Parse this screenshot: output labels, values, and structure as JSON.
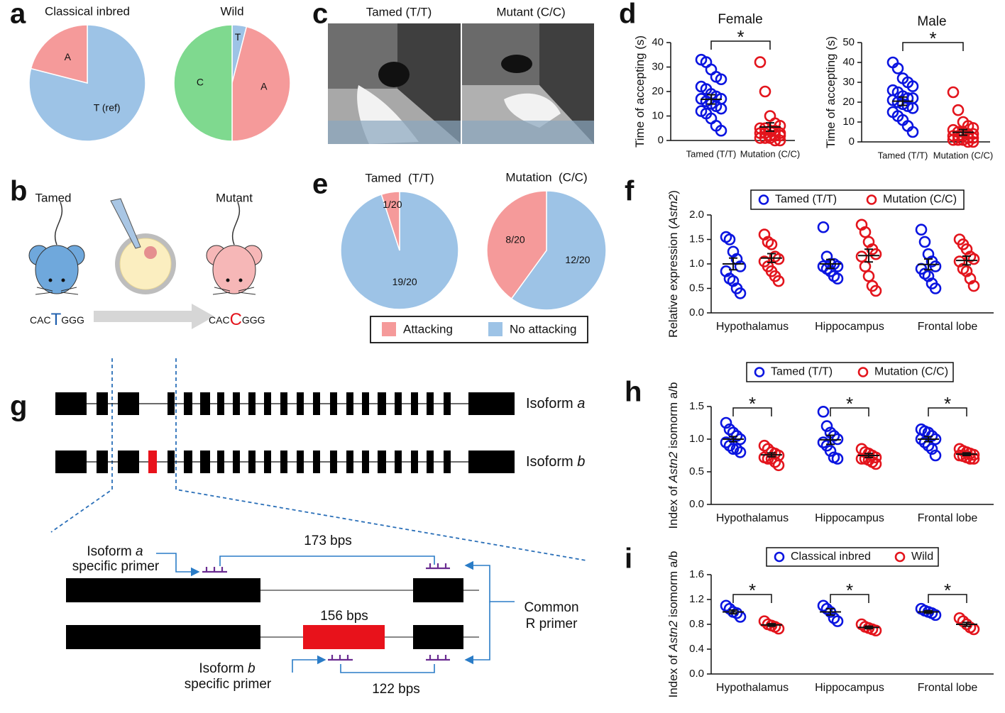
{
  "panel_labels": [
    "a",
    "b",
    "c",
    "d",
    "e",
    "f",
    "g",
    "h",
    "i"
  ],
  "chart_data": [
    {
      "type": "pie",
      "title": "Classical inbred",
      "categories": [
        "T (ref)",
        "A"
      ],
      "values": [
        79,
        21
      ],
      "colors": [
        "#9dc3e6",
        "#f59a9a"
      ]
    },
    {
      "type": "pie",
      "title": "Wild",
      "categories": [
        "T",
        "A",
        "C"
      ],
      "values": [
        4,
        46,
        50
      ],
      "colors": [
        "#9dc3e6",
        "#f59a9a",
        "#7fd98f"
      ]
    },
    {
      "type": "pie",
      "title": "Tamed  (T/T)",
      "values": [
        19,
        1
      ],
      "value_labels": [
        "19/20",
        "1/20"
      ],
      "colors": [
        "#9dc3e6",
        "#f59a9a"
      ]
    },
    {
      "type": "pie",
      "title": "Mutation  (C/C)",
      "values": [
        12,
        8
      ],
      "value_labels": [
        "12/20",
        "8/20"
      ],
      "colors": [
        "#9dc3e6",
        "#f59a9a"
      ]
    },
    {
      "type": "dot",
      "title": "Female",
      "ylabel": [
        "Time of accepting (s)"
      ],
      "categories": [
        "Tamed (T/T)",
        "Mutation (C/C)"
      ],
      "colors": [
        "#0a14e0",
        "#e3141c"
      ],
      "values": [
        [
          33,
          32,
          29,
          26,
          25,
          22,
          21,
          19,
          18,
          17,
          17,
          16,
          15,
          14,
          13,
          12,
          11,
          9,
          6,
          4
        ],
        [
          32,
          20,
          10,
          7,
          6,
          5,
          5,
          4,
          4,
          3,
          3,
          3,
          2,
          2,
          2,
          1,
          1,
          1,
          0,
          0
        ]
      ],
      "means": [
        16.8,
        5.5
      ],
      "sems": [
        1.9,
        1.7
      ],
      "ylim": [
        0,
        40
      ],
      "yticks": [
        0,
        10,
        20,
        30,
        40
      ],
      "significance": "*"
    },
    {
      "type": "dot",
      "title": "Male",
      "ylabel": [
        "Time of accepting (s)"
      ],
      "categories": [
        "Tamed (T/T)",
        "Mutation (C/C)"
      ],
      "colors": [
        "#0a14e0",
        "#e3141c"
      ],
      "values": [
        [
          40,
          37,
          32,
          30,
          28,
          26,
          25,
          23,
          22,
          22,
          21,
          20,
          19,
          18,
          17,
          15,
          13,
          11,
          8,
          5
        ],
        [
          25,
          16,
          10,
          8,
          7,
          6,
          5,
          5,
          4,
          4,
          3,
          3,
          3,
          2,
          2,
          1,
          1,
          1,
          0,
          0
        ]
      ],
      "means": [
        20.5,
        4.8
      ],
      "sems": [
        2.1,
        1.4
      ],
      "ylim": [
        0,
        50
      ],
      "yticks": [
        0,
        10,
        20,
        30,
        40,
        50
      ],
      "significance": "*"
    },
    {
      "type": "dot",
      "ylabel": [
        "Relative expression (",
        "Astn2",
        ")"
      ],
      "categories": [
        "Hypothalamus",
        "Hippocampus",
        "Frontal lobe"
      ],
      "series": [
        {
          "name": "Tamed (T/T)",
          "color": "#0a14e0",
          "values": [
            [
              1.55,
              1.5,
              1.25,
              1.1,
              0.95,
              0.85,
              0.7,
              0.65,
              0.5,
              0.4
            ],
            [
              1.75,
              1.15,
              1.0,
              1.0,
              0.95,
              0.95,
              0.9,
              0.85,
              0.75,
              0.7
            ],
            [
              1.7,
              1.45,
              1.2,
              1.05,
              0.95,
              0.9,
              0.8,
              0.75,
              0.6,
              0.5
            ]
          ],
          "means": [
            1.0,
            1.0,
            0.99
          ],
          "sems": [
            0.12,
            0.09,
            0.11
          ]
        },
        {
          "name": "Mutation (C/C)",
          "color": "#e3141c",
          "values": [
            [
              1.6,
              1.45,
              1.4,
              1.15,
              1.1,
              1.05,
              0.95,
              0.85,
              0.75,
              0.65
            ],
            [
              1.8,
              1.65,
              1.45,
              1.3,
              1.2,
              1.15,
              0.95,
              0.75,
              0.55,
              0.45
            ],
            [
              1.5,
              1.4,
              1.3,
              1.15,
              1.1,
              1.05,
              0.9,
              0.85,
              0.7,
              0.55
            ]
          ],
          "means": [
            1.12,
            1.17,
            1.07
          ],
          "sems": [
            0.09,
            0.13,
            0.09
          ]
        }
      ],
      "ylim": [
        0,
        2
      ],
      "yticks": [
        {
          "value": 0,
          "label": "0.0"
        },
        0.5,
        {
          "value": 1,
          "label": "1.0"
        },
        1.5,
        {
          "value": 2,
          "label": "2.0"
        }
      ]
    },
    {
      "type": "dot",
      "ylabel": [
        "Index of ",
        "Astn2",
        " isomorm a/b"
      ],
      "categories": [
        "Hypothalamus",
        "Hippocampus",
        "Frontal lobe"
      ],
      "series": [
        {
          "name": "Tamed (T/T)",
          "color": "#0a14e0",
          "values": [
            [
              1.25,
              1.15,
              1.1,
              1.05,
              1.0,
              0.95,
              0.9,
              0.85,
              0.85,
              0.8
            ],
            [
              1.42,
              1.2,
              1.1,
              1.05,
              1.0,
              0.95,
              0.9,
              0.82,
              0.72,
              0.7
            ],
            [
              1.15,
              1.12,
              1.1,
              1.05,
              1.0,
              1.0,
              0.95,
              0.9,
              0.85,
              0.75
            ]
          ],
          "means": [
            1.0,
            0.99,
            1.0
          ],
          "sems": [
            0.04,
            0.07,
            0.04
          ]
        },
        {
          "name": "Mutation (C/C)",
          "color": "#e3141c",
          "values": [
            [
              0.9,
              0.85,
              0.8,
              0.78,
              0.75,
              0.72,
              0.7,
              0.7,
              0.65,
              0.6
            ],
            [
              0.85,
              0.8,
              0.78,
              0.75,
              0.72,
              0.7,
              0.7,
              0.68,
              0.65,
              0.62
            ],
            [
              0.85,
              0.82,
              0.8,
              0.78,
              0.76,
              0.75,
              0.74,
              0.72,
              0.7,
              0.7
            ]
          ],
          "means": [
            0.76,
            0.75,
            0.77
          ],
          "sems": [
            0.03,
            0.03,
            0.02
          ]
        }
      ],
      "ylim": [
        0,
        1.5
      ],
      "yticks": [
        {
          "value": 0,
          "label": "0.0"
        },
        0.5,
        {
          "value": 1,
          "label": "1.0"
        },
        1.5
      ],
      "significance": [
        "*",
        "*",
        "*"
      ]
    },
    {
      "type": "dot",
      "ylabel": [
        "Index of ",
        "Astn2",
        " isomorm a/b"
      ],
      "categories": [
        "Hypothalamus",
        "Hippocampus",
        "Frontal lobe"
      ],
      "series": [
        {
          "name": "Classical inbred",
          "color": "#0a14e0",
          "values": [
            [
              1.1,
              1.05,
              1.0,
              0.98,
              0.92
            ],
            [
              1.1,
              1.05,
              1.0,
              0.9,
              0.85
            ],
            [
              1.05,
              1.02,
              1.0,
              0.98,
              0.95
            ]
          ],
          "means": [
            1.0,
            1.0,
            1.0
          ],
          "sems": [
            0.03,
            0.05,
            0.02
          ]
        },
        {
          "name": "Wild",
          "color": "#e3141c",
          "values": [
            [
              0.85,
              0.8,
              0.78,
              0.76,
              0.73
            ],
            [
              0.8,
              0.76,
              0.74,
              0.72,
              0.7
            ],
            [
              0.9,
              0.85,
              0.8,
              0.75,
              0.72
            ]
          ],
          "means": [
            0.79,
            0.75,
            0.8
          ],
          "sems": [
            0.02,
            0.02,
            0.03
          ]
        }
      ],
      "ylim": [
        0,
        1.6
      ],
      "yticks": [
        {
          "value": 0,
          "label": "0.0"
        },
        0.4,
        0.8,
        1.2,
        1.6
      ],
      "significance": [
        "*",
        "*",
        "*"
      ]
    }
  ],
  "legend_e": [
    {
      "name": "Attacking",
      "color": "#f59a9a"
    },
    {
      "name": "No attacking",
      "color": "#9dc3e6"
    }
  ],
  "panel_b": {
    "left_label": "Tamed",
    "right_label": "Mutant",
    "left_sequence": [
      "CAC",
      "T",
      "GGG"
    ],
    "right_sequence": [
      "CAC",
      "C",
      "GGG"
    ]
  },
  "panel_c": {
    "left_title": "Tamed (T/T)",
    "right_title": "Mutant (C/C)"
  },
  "panel_g": {
    "isoform_a_label": [
      "Isoform ",
      "a"
    ],
    "isoform_b_label": [
      "Isoform ",
      "b"
    ],
    "primer_a": {
      "line1": [
        "Isoform ",
        "a"
      ],
      "line2": "specific primer"
    },
    "primer_b": {
      "line1": [
        "Isoform ",
        "b"
      ],
      "line2": "specific primer"
    },
    "common_primer": [
      "Common",
      "R primer"
    ],
    "amplicon_a": "173 bps",
    "exon_b": "156 bps",
    "amplicon_b": "122 bps"
  }
}
